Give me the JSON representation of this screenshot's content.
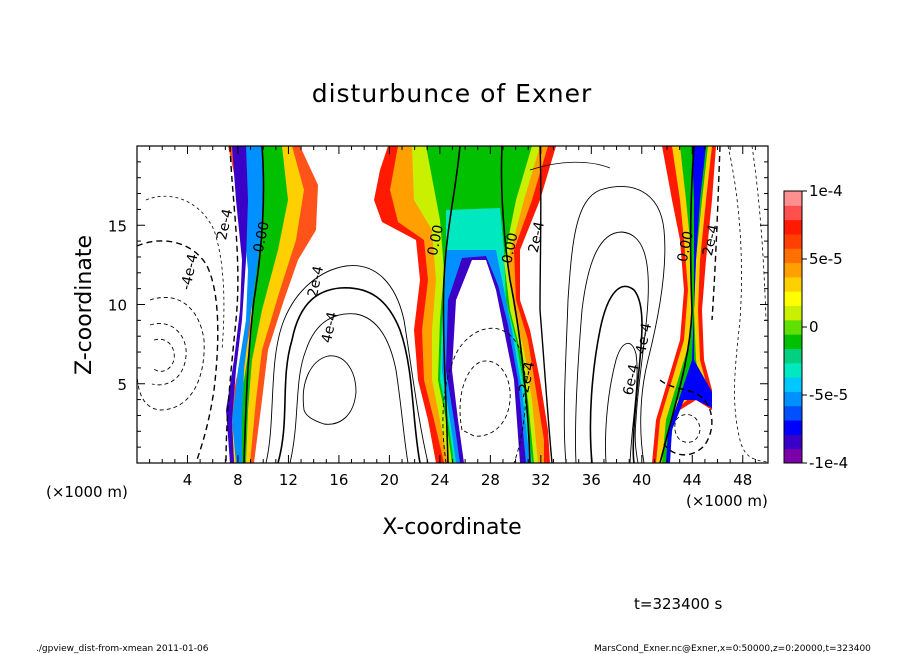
{
  "chart_data": {
    "type": "heatmap",
    "title": "disturbunce of Exner",
    "xlabel": "X-coordinate",
    "ylabel": "Z-coordinate",
    "x_unit_left": "(×1000 m)",
    "x_unit_right": "(×1000 m)",
    "xlim": [
      0,
      50
    ],
    "ylim": [
      0,
      20
    ],
    "x_ticks": [
      4,
      8,
      12,
      16,
      20,
      24,
      28,
      32,
      36,
      40,
      44,
      48
    ],
    "y_ticks": [
      5,
      10,
      15
    ],
    "colorbar": {
      "vmin": -0.0001,
      "vmax": 0.0001,
      "tick_values": [
        0.0001,
        5e-05,
        0,
        -5e-05,
        -0.0001
      ],
      "tick_labels": [
        "1e-4",
        "5e-5",
        "0",
        "-5e-5",
        "-1e-4"
      ],
      "colors": [
        "#7b00a8",
        "#3a00c8",
        "#0000ff",
        "#0050ff",
        "#0090ff",
        "#00c8ff",
        "#00e8c0",
        "#00d080",
        "#00c000",
        "#60e000",
        "#c8f000",
        "#ffff00",
        "#ffd000",
        "#ffa000",
        "#ff7000",
        "#ff4000",
        "#ff1a00",
        "#ff5050",
        "#ff9090"
      ]
    },
    "contour_labels": [
      {
        "text": "0.00",
        "x": 10.2,
        "z": 14.2
      },
      {
        "text": "0.00",
        "x": 24.0,
        "z": 14.0
      },
      {
        "text": "0.00",
        "x": 29.9,
        "z": 13.5
      },
      {
        "text": "0.00",
        "x": 43.8,
        "z": 13.6
      },
      {
        "text": "2e-4",
        "x": 7.3,
        "z": 15.0
      },
      {
        "text": "-4e-4",
        "x": 4.5,
        "z": 12.0
      },
      {
        "text": "2e-4",
        "x": 14.5,
        "z": 11.4
      },
      {
        "text": "4e-4",
        "x": 15.6,
        "z": 8.5
      },
      {
        "text": "2e-4",
        "x": 32.0,
        "z": 14.2
      },
      {
        "text": "2e-4",
        "x": 45.8,
        "z": 14.0
      },
      {
        "text": "4e-4",
        "x": 40.5,
        "z": 7.8
      },
      {
        "text": "6e-4",
        "x": 39.5,
        "z": 5.2
      },
      {
        "text": "-2e-4",
        "x": 31.2,
        "z": 5.2
      }
    ]
  },
  "footer": {
    "time": "t=323400 s",
    "script": "./gpview_dist-from-xmean  2011-01-06",
    "source": "MarsCond_Exner.nc@Exner,x=0:50000,z=0:20000,t=323400"
  }
}
